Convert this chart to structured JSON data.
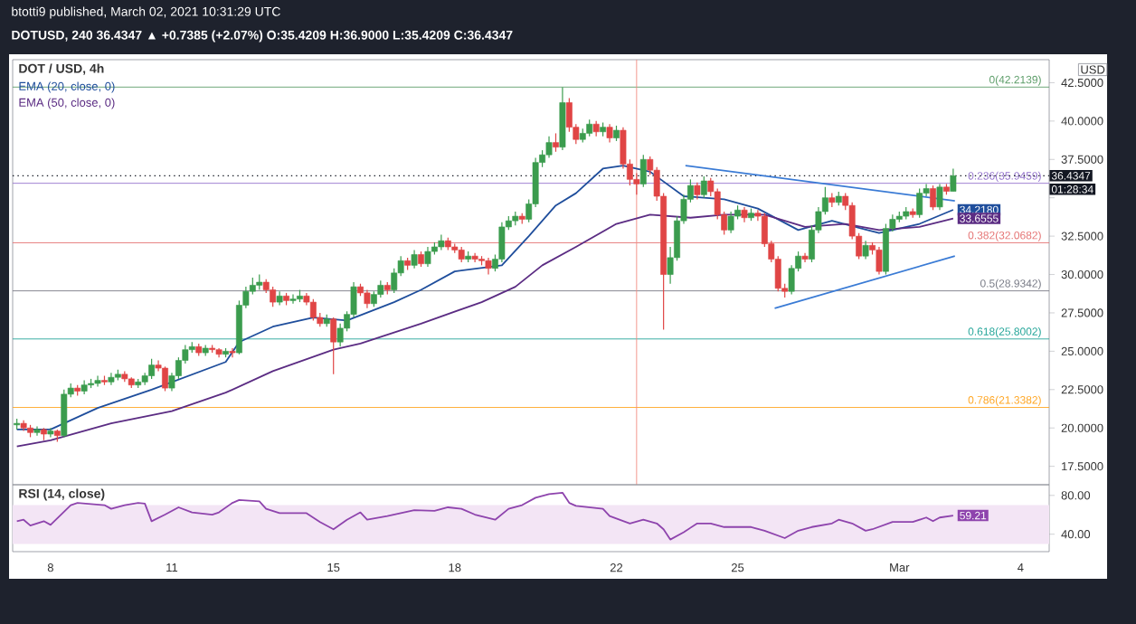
{
  "chart_data": [
    {
      "type": "candlestick",
      "title": "DOT / USD, 4h",
      "ylabel": "USD",
      "legend": "top left",
      "tick_labels": "y",
      "annotations": [
        "btotti9 published, March 02, 2021 10:31:29 UTC",
        "DOTUSD, 240 36.4347 ▲ +0.7385 (+2.07%) O:35.4209 H:36.9000 L:35.4209 C:36.4347",
        "01:28:34"
      ],
      "xlim": [
        "2021-02-07T01:30",
        "2021-03-04T17:00"
      ],
      "ylim": [
        16.3,
        44.0
      ],
      "yticks": [
        {
          "value": 17.5,
          "label": "17.5000"
        },
        {
          "value": 20,
          "label": "20.0000"
        },
        {
          "value": 22.5,
          "label": "22.5000"
        },
        {
          "value": 25,
          "label": "25.0000"
        },
        {
          "value": 27.5,
          "label": "27.5000"
        },
        {
          "value": 30,
          "label": "30.0000"
        },
        {
          "value": 32.5,
          "label": "32.5000"
        },
        {
          "value": 35,
          "label": null
        },
        {
          "value": 37.5,
          "label": "37.5000"
        },
        {
          "value": 40,
          "label": "40.0000"
        },
        {
          "value": 42.5,
          "label": "42.5000"
        }
      ],
      "ref_lines": [
        {
          "axis": "y",
          "value": 42.2139,
          "label": "0(42.2139)",
          "color": "#5e9e6a"
        },
        {
          "axis": "y",
          "value": 35.9459,
          "label": "0.236(35.9459)",
          "color": "#9575cd"
        },
        {
          "axis": "y",
          "value": 32.0682,
          "label": "0.382(32.0682)",
          "color": "#e57373"
        },
        {
          "axis": "y",
          "value": 28.9342,
          "label": "0.5(28.9342)",
          "color": "#787b86"
        },
        {
          "axis": "y",
          "value": 25.8002,
          "label": "0.618(25.8002)",
          "color": "#26a69a"
        },
        {
          "axis": "y",
          "value": 21.3382,
          "label": "0.786(21.3382)",
          "color": "#ffa726"
        },
        {
          "axis": "x",
          "value": "2021-02-22T12:00",
          "color": "#f28b82"
        },
        {
          "axis": "y",
          "value": 36.4347,
          "label": "36.4347",
          "color": "#131722",
          "line_style": "dotted"
        }
      ],
      "x": [
        "2021-02-07T04:00",
        "2021-02-07T08:00",
        "2021-02-07T12:00",
        "2021-02-07T16:00",
        "2021-02-07T20:00",
        "2021-02-08T00:00",
        "2021-02-08T04:00",
        "2021-02-08T08:00",
        "2021-02-08T12:00",
        "2021-02-08T16:00",
        "2021-02-08T20:00",
        "2021-02-09T00:00",
        "2021-02-09T04:00",
        "2021-02-09T08:00",
        "2021-02-09T12:00",
        "2021-02-09T16:00",
        "2021-02-09T20:00",
        "2021-02-10T00:00",
        "2021-02-10T04:00",
        "2021-02-10T08:00",
        "2021-02-10T12:00",
        "2021-02-10T16:00",
        "2021-02-10T20:00",
        "2021-02-11T00:00",
        "2021-02-11T04:00",
        "2021-02-11T08:00",
        "2021-02-11T12:00",
        "2021-02-11T16:00",
        "2021-02-11T20:00",
        "2021-02-12T00:00",
        "2021-02-12T04:00",
        "2021-02-12T08:00",
        "2021-02-12T12:00",
        "2021-02-12T16:00",
        "2021-02-12T20:00",
        "2021-02-13T00:00",
        "2021-02-13T04:00",
        "2021-02-13T08:00",
        "2021-02-13T12:00",
        "2021-02-13T16:00",
        "2021-02-13T20:00",
        "2021-02-14T00:00",
        "2021-02-14T04:00",
        "2021-02-14T08:00",
        "2021-02-14T12:00",
        "2021-02-14T16:00",
        "2021-02-14T20:00",
        "2021-02-15T00:00",
        "2021-02-15T04:00",
        "2021-02-15T08:00",
        "2021-02-15T12:00",
        "2021-02-15T16:00",
        "2021-02-15T20:00",
        "2021-02-16T00:00",
        "2021-02-16T04:00",
        "2021-02-16T08:00",
        "2021-02-16T12:00",
        "2021-02-16T16:00",
        "2021-02-16T20:00",
        "2021-02-17T00:00",
        "2021-02-17T04:00",
        "2021-02-17T08:00",
        "2021-02-17T12:00",
        "2021-02-17T16:00",
        "2021-02-17T20:00",
        "2021-02-18T00:00",
        "2021-02-18T04:00",
        "2021-02-18T08:00",
        "2021-02-18T12:00",
        "2021-02-18T16:00",
        "2021-02-18T20:00",
        "2021-02-19T00:00",
        "2021-02-19T04:00",
        "2021-02-19T08:00",
        "2021-02-19T12:00",
        "2021-02-19T16:00",
        "2021-02-19T20:00",
        "2021-02-20T00:00",
        "2021-02-20T04:00",
        "2021-02-20T08:00",
        "2021-02-20T12:00",
        "2021-02-20T16:00",
        "2021-02-20T20:00",
        "2021-02-21T00:00",
        "2021-02-21T04:00",
        "2021-02-21T08:00",
        "2021-02-21T12:00",
        "2021-02-21T16:00",
        "2021-02-21T20:00",
        "2021-02-22T00:00",
        "2021-02-22T04:00",
        "2021-02-22T08:00",
        "2021-02-22T12:00",
        "2021-02-22T16:00",
        "2021-02-22T20:00",
        "2021-02-23T00:00",
        "2021-02-23T04:00",
        "2021-02-23T08:00",
        "2021-02-23T12:00",
        "2021-02-23T16:00",
        "2021-02-23T20:00",
        "2021-02-24T00:00",
        "2021-02-24T04:00",
        "2021-02-24T08:00",
        "2021-02-24T12:00",
        "2021-02-24T16:00",
        "2021-02-24T20:00",
        "2021-02-25T00:00",
        "2021-02-25T04:00",
        "2021-02-25T08:00",
        "2021-02-25T12:00",
        "2021-02-25T16:00",
        "2021-02-25T20:00",
        "2021-02-26T00:00",
        "2021-02-26T04:00",
        "2021-02-26T08:00",
        "2021-02-26T12:00",
        "2021-02-26T16:00",
        "2021-02-26T20:00",
        "2021-02-27T00:00",
        "2021-02-27T04:00",
        "2021-02-27T08:00",
        "2021-02-27T12:00",
        "2021-02-27T16:00",
        "2021-02-27T20:00",
        "2021-02-28T00:00",
        "2021-02-28T04:00",
        "2021-02-28T08:00",
        "2021-02-28T12:00",
        "2021-02-28T16:00",
        "2021-02-28T20:00",
        "2021-03-01T00:00",
        "2021-03-01T04:00",
        "2021-03-01T08:00",
        "2021-03-01T12:00",
        "2021-03-01T16:00",
        "2021-03-01T20:00",
        "2021-03-02T00:00",
        "2021-03-02T04:00",
        "2021-03-02T08:00"
      ],
      "ohlc": [
        [
          20.2,
          20.6,
          19.9,
          20.3
        ],
        [
          20.3,
          20.5,
          19.8,
          20.0
        ],
        [
          20.0,
          20.2,
          19.4,
          19.7
        ],
        [
          19.7,
          20.1,
          19.5,
          19.9
        ],
        [
          19.9,
          20.0,
          19.2,
          19.6
        ],
        [
          19.6,
          20.0,
          19.4,
          19.8
        ],
        [
          19.8,
          19.9,
          19.1,
          19.5
        ],
        [
          19.5,
          22.5,
          19.4,
          22.2
        ],
        [
          22.2,
          22.9,
          22.0,
          22.6
        ],
        [
          22.6,
          22.8,
          22.1,
          22.4
        ],
        [
          22.4,
          23.1,
          22.2,
          22.8
        ],
        [
          22.8,
          23.2,
          22.6,
          22.9
        ],
        [
          22.9,
          23.4,
          22.7,
          23.1
        ],
        [
          23.1,
          23.4,
          22.8,
          23.0
        ],
        [
          23.0,
          23.6,
          22.8,
          23.3
        ],
        [
          23.3,
          23.8,
          23.1,
          23.5
        ],
        [
          23.5,
          23.7,
          23.0,
          23.2
        ],
        [
          23.2,
          23.3,
          22.6,
          22.8
        ],
        [
          22.8,
          23.2,
          22.6,
          23.0
        ],
        [
          23.0,
          23.6,
          22.8,
          23.4
        ],
        [
          23.4,
          24.5,
          23.2,
          24.1
        ],
        [
          24.1,
          24.4,
          23.7,
          23.9
        ],
        [
          23.9,
          24.0,
          22.4,
          22.6
        ],
        [
          22.6,
          23.6,
          22.4,
          23.4
        ],
        [
          23.4,
          24.6,
          23.2,
          24.4
        ],
        [
          24.4,
          25.4,
          24.2,
          25.1
        ],
        [
          25.1,
          25.6,
          24.9,
          25.3
        ],
        [
          25.3,
          25.5,
          24.7,
          24.9
        ],
        [
          24.9,
          25.4,
          24.7,
          25.2
        ],
        [
          25.2,
          25.4,
          24.9,
          25.1
        ],
        [
          25.1,
          25.2,
          24.6,
          24.8
        ],
        [
          24.8,
          25.2,
          24.6,
          25.0
        ],
        [
          25.0,
          25.2,
          24.6,
          24.9
        ],
        [
          24.9,
          28.3,
          24.8,
          28.0
        ],
        [
          28.0,
          29.2,
          27.8,
          28.9
        ],
        [
          28.9,
          29.8,
          28.7,
          29.3
        ],
        [
          29.3,
          30.0,
          29.0,
          29.5
        ],
        [
          29.5,
          29.7,
          28.8,
          29.0
        ],
        [
          29.0,
          29.2,
          27.9,
          28.2
        ],
        [
          28.2,
          28.9,
          28.0,
          28.6
        ],
        [
          28.6,
          28.8,
          28.0,
          28.3
        ],
        [
          28.3,
          28.7,
          28.1,
          28.4
        ],
        [
          28.4,
          29.0,
          28.2,
          28.6
        ],
        [
          28.6,
          28.8,
          28.0,
          28.2
        ],
        [
          28.2,
          28.4,
          27.0,
          27.2
        ],
        [
          27.2,
          27.5,
          26.6,
          26.8
        ],
        [
          26.8,
          27.4,
          26.6,
          27.1
        ],
        [
          27.1,
          27.2,
          23.5,
          25.6
        ],
        [
          25.6,
          26.8,
          25.3,
          26.5
        ],
        [
          26.5,
          27.6,
          26.3,
          27.4
        ],
        [
          27.4,
          29.5,
          27.2,
          29.2
        ],
        [
          29.2,
          29.4,
          28.6,
          28.8
        ],
        [
          28.8,
          29.0,
          27.8,
          28.1
        ],
        [
          28.1,
          28.9,
          27.9,
          28.7
        ],
        [
          28.7,
          29.6,
          28.5,
          29.3
        ],
        [
          29.3,
          29.5,
          28.7,
          29.0
        ],
        [
          29.0,
          30.4,
          28.8,
          30.1
        ],
        [
          30.1,
          31.2,
          29.9,
          30.9
        ],
        [
          30.9,
          31.1,
          30.3,
          30.6
        ],
        [
          30.6,
          31.6,
          30.4,
          31.3
        ],
        [
          31.3,
          31.5,
          30.5,
          30.7
        ],
        [
          30.7,
          31.8,
          30.5,
          31.5
        ],
        [
          31.5,
          32.1,
          31.3,
          31.8
        ],
        [
          31.8,
          32.6,
          31.6,
          32.2
        ],
        [
          32.2,
          32.4,
          31.6,
          31.8
        ],
        [
          31.8,
          32.0,
          31.4,
          31.6
        ],
        [
          31.6,
          31.8,
          30.8,
          31.0
        ],
        [
          31.0,
          31.5,
          30.8,
          31.2
        ],
        [
          31.2,
          31.4,
          30.8,
          31.0
        ],
        [
          31.0,
          31.2,
          30.6,
          30.9
        ],
        [
          30.9,
          31.1,
          30.0,
          30.4
        ],
        [
          30.4,
          31.3,
          30.2,
          31.0
        ],
        [
          31.0,
          33.4,
          30.8,
          33.1
        ],
        [
          33.1,
          33.8,
          32.9,
          33.5
        ],
        [
          33.5,
          34.1,
          33.2,
          33.8
        ],
        [
          33.8,
          34.0,
          33.3,
          33.6
        ],
        [
          33.6,
          34.9,
          33.4,
          34.6
        ],
        [
          34.6,
          37.6,
          34.4,
          37.3
        ],
        [
          37.3,
          38.1,
          37.0,
          37.8
        ],
        [
          37.8,
          39.0,
          37.6,
          38.6
        ],
        [
          38.6,
          39.2,
          38.0,
          38.3
        ],
        [
          38.3,
          42.2,
          38.1,
          41.2
        ],
        [
          41.2,
          41.5,
          39.3,
          39.6
        ],
        [
          39.6,
          39.8,
          38.5,
          38.8
        ],
        [
          38.8,
          39.5,
          38.6,
          39.2
        ],
        [
          39.2,
          40.1,
          39.0,
          39.8
        ],
        [
          39.8,
          40.0,
          39.0,
          39.3
        ],
        [
          39.3,
          39.9,
          39.0,
          39.6
        ],
        [
          39.6,
          39.8,
          38.6,
          38.9
        ],
        [
          38.9,
          39.7,
          38.7,
          39.4
        ],
        [
          39.4,
          39.6,
          36.9,
          37.2
        ],
        [
          37.2,
          37.5,
          35.8,
          36.2
        ],
        [
          36.2,
          36.6,
          35.2,
          35.9
        ],
        [
          35.9,
          37.8,
          35.7,
          37.5
        ],
        [
          37.5,
          37.7,
          36.5,
          36.8
        ],
        [
          36.8,
          37.0,
          34.8,
          35.1
        ],
        [
          35.1,
          35.3,
          26.4,
          30.0
        ],
        [
          30.0,
          31.8,
          29.4,
          31.1
        ],
        [
          31.1,
          33.8,
          30.9,
          33.5
        ],
        [
          33.5,
          35.2,
          33.3,
          34.9
        ],
        [
          34.9,
          36.2,
          34.7,
          35.8
        ],
        [
          35.8,
          36.0,
          34.9,
          35.2
        ],
        [
          35.2,
          36.4,
          35.0,
          36.1
        ],
        [
          36.1,
          36.3,
          35.1,
          35.4
        ],
        [
          35.4,
          35.6,
          33.6,
          33.9
        ],
        [
          33.9,
          34.1,
          32.6,
          32.9
        ],
        [
          32.9,
          34.1,
          32.7,
          33.8
        ],
        [
          33.8,
          34.5,
          33.6,
          34.2
        ],
        [
          34.2,
          34.4,
          33.4,
          33.7
        ],
        [
          33.7,
          34.3,
          33.5,
          34.0
        ],
        [
          34.0,
          34.2,
          33.5,
          33.8
        ],
        [
          33.8,
          34.0,
          31.8,
          32.0
        ],
        [
          32.0,
          32.2,
          30.8,
          31.0
        ],
        [
          31.0,
          31.2,
          28.9,
          29.1
        ],
        [
          29.1,
          29.4,
          28.5,
          28.9
        ],
        [
          28.9,
          30.6,
          28.7,
          30.4
        ],
        [
          30.4,
          31.5,
          30.2,
          31.2
        ],
        [
          31.2,
          31.4,
          30.8,
          31.0
        ],
        [
          31.0,
          33.2,
          30.8,
          32.9
        ],
        [
          32.9,
          34.4,
          32.7,
          34.1
        ],
        [
          34.1,
          35.7,
          33.9,
          35.0
        ],
        [
          35.0,
          35.3,
          34.4,
          34.7
        ],
        [
          34.7,
          35.4,
          34.5,
          35.1
        ],
        [
          35.1,
          35.3,
          34.2,
          34.5
        ],
        [
          34.5,
          34.7,
          32.3,
          32.5
        ],
        [
          32.5,
          32.7,
          31.0,
          31.2
        ],
        [
          31.2,
          32.2,
          31.0,
          31.9
        ],
        [
          31.9,
          32.1,
          31.3,
          31.6
        ],
        [
          31.6,
          31.8,
          30.0,
          30.2
        ],
        [
          30.2,
          33.3,
          30.0,
          33.0
        ],
        [
          33.0,
          33.9,
          32.8,
          33.6
        ],
        [
          33.6,
          34.1,
          33.4,
          33.8
        ],
        [
          33.8,
          34.4,
          33.6,
          34.1
        ],
        [
          34.1,
          34.3,
          33.7,
          33.9
        ],
        [
          33.9,
          35.6,
          33.7,
          35.3
        ],
        [
          35.3,
          35.9,
          35.1,
          35.6
        ],
        [
          35.6,
          35.8,
          34.2,
          34.4
        ],
        [
          34.4,
          35.9,
          34.2,
          35.7
        ],
        [
          35.7,
          35.9,
          35.2,
          35.4209
        ],
        [
          35.4209,
          36.9,
          35.4209,
          36.4347
        ]
      ],
      "series": [
        {
          "type": "line",
          "name": "EMA (20, close, 0)",
          "color": "#1f4e9c",
          "x": [
            "2021-02-07T04:00",
            "2021-02-08T00:00",
            "2021-02-09T04:00",
            "2021-02-10T12:00",
            "2021-02-12T08:00",
            "2021-02-12T16:00",
            "2021-02-13T12:00",
            "2021-02-14T12:00",
            "2021-02-15T08:00",
            "2021-02-16T12:00",
            "2021-02-17T04:00",
            "2021-02-18T00:00",
            "2021-02-19T04:00",
            "2021-02-19T20:00",
            "2021-02-20T12:00",
            "2021-02-21T00:00",
            "2021-02-21T16:00",
            "2021-02-22T04:00",
            "2021-02-22T20:00",
            "2021-02-23T16:00",
            "2021-02-24T16:00",
            "2021-02-25T12:00",
            "2021-02-26T12:00",
            "2021-02-27T08:00",
            "2021-02-28T12:00",
            "2021-03-01T12:00",
            "2021-03-02T08:00"
          ],
          "values": [
            19.9,
            19.9,
            21.3,
            22.5,
            24.3,
            25.6,
            26.6,
            27.2,
            27.0,
            28.2,
            29.0,
            30.2,
            30.6,
            32.5,
            34.5,
            35.3,
            36.9,
            37.1,
            36.7,
            35.1,
            34.9,
            34.3,
            32.9,
            33.5,
            32.7,
            33.3,
            34.218
          ],
          "value_labels": [
            null,
            null,
            null,
            null,
            null,
            null,
            null,
            null,
            null,
            null,
            null,
            null,
            null,
            null,
            null,
            null,
            null,
            null,
            null,
            null,
            null,
            null,
            null,
            null,
            null,
            null,
            "34.2180"
          ]
        },
        {
          "type": "line",
          "name": "EMA (50, close, 0)",
          "color": "#5b2c83",
          "x": [
            "2021-02-07T04:00",
            "2021-02-08T00:00",
            "2021-02-09T12:00",
            "2021-02-11T00:00",
            "2021-02-12T08:00",
            "2021-02-13T12:00",
            "2021-02-15T00:00",
            "2021-02-15T16:00",
            "2021-02-17T04:00",
            "2021-02-18T16:00",
            "2021-02-19T12:00",
            "2021-02-20T04:00",
            "2021-02-21T00:00",
            "2021-02-22T00:00",
            "2021-02-22T20:00",
            "2021-02-23T20:00",
            "2021-02-24T16:00",
            "2021-02-25T16:00",
            "2021-02-26T16:00",
            "2021-02-27T16:00",
            "2021-02-28T12:00",
            "2021-03-01T12:00",
            "2021-03-02T08:00"
          ],
          "values": [
            18.8,
            19.2,
            20.3,
            21.1,
            22.3,
            23.7,
            25.1,
            25.5,
            26.8,
            28.2,
            29.2,
            30.6,
            31.8,
            33.3,
            33.9,
            33.7,
            33.9,
            33.9,
            33.1,
            33.3,
            32.9,
            33.1,
            33.6555
          ],
          "value_labels": [
            null,
            null,
            null,
            null,
            null,
            null,
            null,
            null,
            null,
            null,
            null,
            null,
            null,
            null,
            null,
            null,
            null,
            null,
            null,
            null,
            null,
            null,
            "33.6555"
          ]
        },
        {
          "type": "line",
          "color": "#3a7bd5",
          "x": [
            "2021-02-23T17:00",
            "2021-03-02T09:00"
          ],
          "values": [
            37.1,
            34.8
          ]
        },
        {
          "type": "line",
          "color": "#3a7bd5",
          "x": [
            "2021-02-25T22:00",
            "2021-03-02T09:00"
          ],
          "values": [
            27.8,
            31.2
          ]
        }
      ]
    },
    {
      "type": "line",
      "title": "RSI (14, close)",
      "color": "#8e44ad",
      "xlim": [
        "2021-02-07T01:30",
        "2021-03-04T17:00"
      ],
      "xticks": [
        {
          "value": "2021-02-08",
          "label": "8"
        },
        {
          "value": "2021-02-11",
          "label": "11"
        },
        {
          "value": "2021-02-15",
          "label": "15"
        },
        {
          "value": "2021-02-18",
          "label": "18"
        },
        {
          "value": "2021-02-22",
          "label": "22"
        },
        {
          "value": "2021-02-25",
          "label": "25"
        },
        {
          "value": "2021-03-01",
          "label": "Mar"
        },
        {
          "value": "2021-03-04",
          "label": "4"
        }
      ],
      "ylim": [
        22,
        91
      ],
      "yticks": [
        {
          "value": 40,
          "label": "40.00"
        },
        {
          "value": 80,
          "label": "80.00"
        }
      ],
      "bands": [
        {
          "axis": "y",
          "from": 30,
          "to": 70,
          "color": "#f3e5f5"
        }
      ],
      "x": [
        "2021-02-07T04:00",
        "2021-02-07T08:00",
        "2021-02-07T12:00",
        "2021-02-07T20:00",
        "2021-02-08T00:00",
        "2021-02-08T04:00",
        "2021-02-08T12:00",
        "2021-02-08T16:00",
        "2021-02-09T08:00",
        "2021-02-09T12:00",
        "2021-02-09T20:00",
        "2021-02-10T04:00",
        "2021-02-10T08:00",
        "2021-02-10T12:00",
        "2021-02-10T20:00",
        "2021-02-11T04:00",
        "2021-02-11T12:00",
        "2021-02-12T00:00",
        "2021-02-12T04:00",
        "2021-02-12T12:00",
        "2021-02-12T16:00",
        "2021-02-13T04:00",
        "2021-02-13T08:00",
        "2021-02-13T16:00",
        "2021-02-14T08:00",
        "2021-02-14T16:00",
        "2021-02-15T00:00",
        "2021-02-15T08:00",
        "2021-02-15T16:00",
        "2021-02-15T20:00",
        "2021-02-16T08:00",
        "2021-02-17T00:00",
        "2021-02-17T12:00",
        "2021-02-17T20:00",
        "2021-02-18T04:00",
        "2021-02-18T12:00",
        "2021-02-19T00:00",
        "2021-02-19T08:00",
        "2021-02-19T16:00",
        "2021-02-20T00:00",
        "2021-02-20T08:00",
        "2021-02-20T16:00",
        "2021-02-20T20:00",
        "2021-02-21T00:00",
        "2021-02-21T16:00",
        "2021-02-21T20:00",
        "2021-02-22T08:00",
        "2021-02-22T16:00",
        "2021-02-23T00:00",
        "2021-02-23T04:00",
        "2021-02-23T08:00",
        "2021-02-23T16:00",
        "2021-02-24T00:00",
        "2021-02-24T08:00",
        "2021-02-24T16:00",
        "2021-02-25T08:00",
        "2021-02-25T16:00",
        "2021-02-26T04:00",
        "2021-02-26T12:00",
        "2021-02-26T20:00",
        "2021-02-27T08:00",
        "2021-02-27T12:00",
        "2021-02-27T20:00",
        "2021-02-28T04:00",
        "2021-02-28T08:00",
        "2021-02-28T20:00",
        "2021-03-01T08:00",
        "2021-03-01T16:00",
        "2021-03-01T20:00",
        "2021-03-02T00:00",
        "2021-03-02T08:00"
      ],
      "values": [
        53.4,
        54.9,
        48.9,
        53.4,
        49.6,
        56.4,
        70.0,
        72.3,
        70.0,
        66.2,
        70.0,
        72.3,
        71.5,
        53.4,
        60.2,
        67.7,
        62.5,
        60.2,
        62.5,
        72.3,
        75.3,
        73.8,
        66.2,
        61.7,
        61.7,
        52.6,
        45.1,
        54.9,
        62.5,
        54.9,
        58.7,
        64.7,
        64.0,
        67.7,
        66.2,
        60.2,
        54.9,
        66.2,
        70.0,
        77.6,
        81.3,
        82.8,
        72.3,
        69.2,
        66.2,
        58.7,
        51.1,
        54.9,
        51.1,
        45.1,
        34.5,
        42.1,
        51.1,
        51.1,
        47.4,
        47.4,
        43.6,
        36.0,
        43.6,
        47.4,
        51.1,
        54.9,
        51.1,
        43.6,
        45.1,
        52.6,
        52.6,
        57.2,
        53.4,
        57.2,
        59.21
      ],
      "value_labels": [
        null,
        null,
        null,
        null,
        null,
        null,
        null,
        null,
        null,
        null,
        null,
        null,
        null,
        null,
        null,
        null,
        null,
        null,
        null,
        null,
        null,
        null,
        null,
        null,
        null,
        null,
        null,
        null,
        null,
        null,
        null,
        null,
        null,
        null,
        null,
        null,
        null,
        null,
        null,
        null,
        null,
        null,
        null,
        null,
        null,
        null,
        null,
        null,
        null,
        null,
        null,
        null,
        null,
        null,
        null,
        null,
        null,
        null,
        null,
        null,
        null,
        null,
        null,
        null,
        null,
        null,
        null,
        null,
        null,
        null,
        "59.21"
      ]
    }
  ]
}
